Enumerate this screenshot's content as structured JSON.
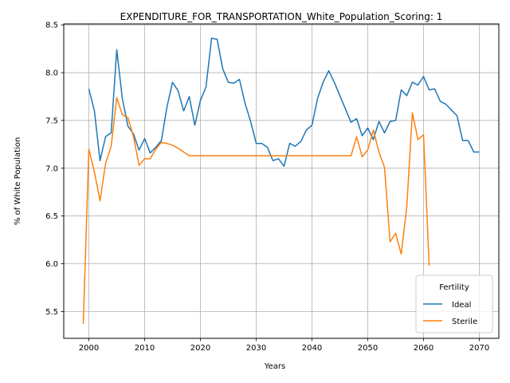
{
  "chart_data": {
    "type": "line",
    "title": "EXPENDITURE_FOR_TRANSPORTATION_White_Population_Scoring: 1",
    "xlabel": "Years",
    "ylabel": "% of White Population",
    "xlim": [
      1995.5,
      2073.5
    ],
    "ylim": [
      5.22,
      8.51
    ],
    "xticks": [
      2000,
      2010,
      2020,
      2030,
      2040,
      2050,
      2060,
      2070
    ],
    "yticks": [
      5.5,
      6.0,
      6.5,
      7.0,
      7.5,
      8.0,
      8.5
    ],
    "ytick_labels": [
      "5.5",
      "6.0",
      "6.5",
      "7.0",
      "7.5",
      "8.0",
      "8.5"
    ],
    "grid": true,
    "legend": {
      "title": "Fertility",
      "placement": "lower-right"
    },
    "series": [
      {
        "name": "Ideal",
        "color": "#1f77b4",
        "x": [
          2000,
          2001,
          2002,
          2003,
          2004,
          2005,
          2006,
          2007,
          2008,
          2009,
          2010,
          2011,
          2012,
          2013,
          2014,
          2015,
          2016,
          2017,
          2018,
          2019,
          2020,
          2021,
          2022,
          2023,
          2024,
          2025,
          2026,
          2027,
          2028,
          2029,
          2030,
          2031,
          2032,
          2033,
          2034,
          2035,
          2036,
          2037,
          2038,
          2039,
          2040,
          2041,
          2042,
          2043,
          2044,
          2045,
          2046,
          2047,
          2048,
          2049,
          2050,
          2051,
          2052,
          2053,
          2054,
          2055,
          2056,
          2057,
          2058,
          2059,
          2060,
          2061,
          2062,
          2063,
          2064,
          2065,
          2066,
          2067,
          2068,
          2069,
          2070
        ],
        "y": [
          7.83,
          7.6,
          7.08,
          7.33,
          7.37,
          8.24,
          7.73,
          7.44,
          7.36,
          7.19,
          7.31,
          7.16,
          7.22,
          7.29,
          7.64,
          7.9,
          7.81,
          7.6,
          7.75,
          7.45,
          7.71,
          7.85,
          8.36,
          8.35,
          8.04,
          7.9,
          7.89,
          7.93,
          7.68,
          7.49,
          7.26,
          7.26,
          7.22,
          7.08,
          7.1,
          7.02,
          7.26,
          7.23,
          7.28,
          7.4,
          7.45,
          7.73,
          7.9,
          8.02,
          7.9,
          7.76,
          7.62,
          7.48,
          7.52,
          7.34,
          7.42,
          7.3,
          7.49,
          7.37,
          7.49,
          7.5,
          7.82,
          7.76,
          7.9,
          7.87,
          7.96,
          7.82,
          7.83,
          7.7,
          7.67,
          7.61,
          7.55,
          7.29,
          7.29,
          7.17,
          7.17
        ]
      },
      {
        "name": "Sterile",
        "color": "#ff7f0e",
        "x": [
          1999,
          2000,
          2001,
          2002,
          2003,
          2004,
          2005,
          2006,
          2007,
          2008,
          2009,
          2010,
          2011,
          2012,
          2013,
          2014,
          2015,
          2016,
          2017,
          2018,
          2019,
          2020,
          2021,
          2022,
          2023,
          2024,
          2025,
          2026,
          2027,
          2028,
          2029,
          2030,
          2031,
          2032,
          2033,
          2034,
          2035,
          2036,
          2037,
          2038,
          2039,
          2040,
          2041,
          2042,
          2043,
          2044,
          2045,
          2046,
          2047,
          2048,
          2049,
          2050,
          2051,
          2052,
          2053,
          2054,
          2055,
          2056,
          2057,
          2058,
          2059,
          2060,
          2061
        ],
        "y": [
          5.37,
          7.2,
          6.96,
          6.66,
          7.05,
          7.23,
          7.74,
          7.56,
          7.53,
          7.33,
          7.03,
          7.1,
          7.1,
          7.2,
          7.27,
          7.26,
          7.24,
          7.21,
          7.17,
          7.13,
          7.13,
          7.13,
          7.13,
          7.13,
          7.13,
          7.13,
          7.13,
          7.13,
          7.13,
          7.13,
          7.13,
          7.13,
          7.13,
          7.13,
          7.13,
          7.13,
          7.13,
          7.13,
          7.13,
          7.13,
          7.13,
          7.13,
          7.13,
          7.13,
          7.13,
          7.13,
          7.13,
          7.13,
          7.13,
          7.33,
          7.12,
          7.19,
          7.4,
          7.17,
          7.01,
          6.23,
          6.32,
          6.1,
          6.6,
          7.58,
          7.3,
          7.35,
          5.98
        ]
      }
    ]
  }
}
